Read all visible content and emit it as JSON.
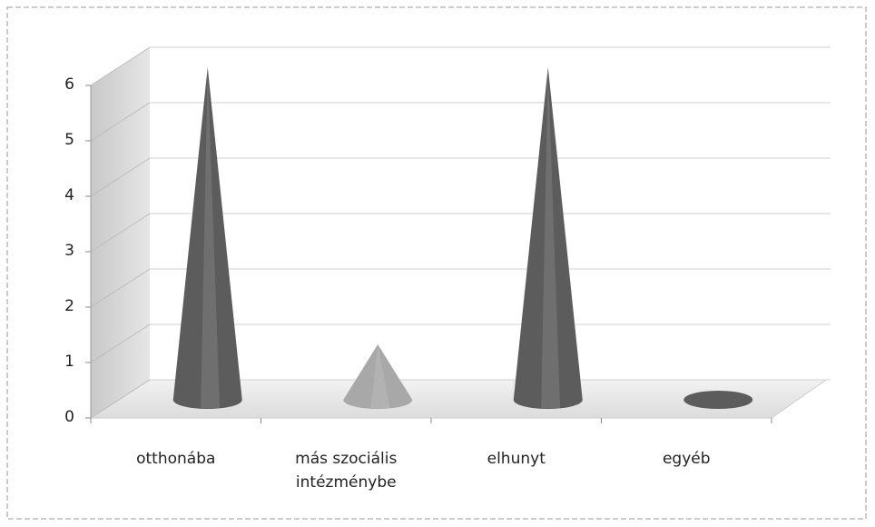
{
  "chart_data": {
    "type": "cone3d",
    "categories": [
      "otthonába",
      "más szociális intézménybe",
      "elhunyt",
      "egyéb"
    ],
    "values": [
      6,
      1,
      6,
      0
    ],
    "colors": [
      "#5c5c5c",
      "#a8a8a8",
      "#5c5c5c",
      "#5c5c5c"
    ],
    "ylim": [
      0,
      6
    ],
    "yticks": [
      0,
      1,
      2,
      3,
      4,
      5,
      6
    ],
    "grid": true
  }
}
